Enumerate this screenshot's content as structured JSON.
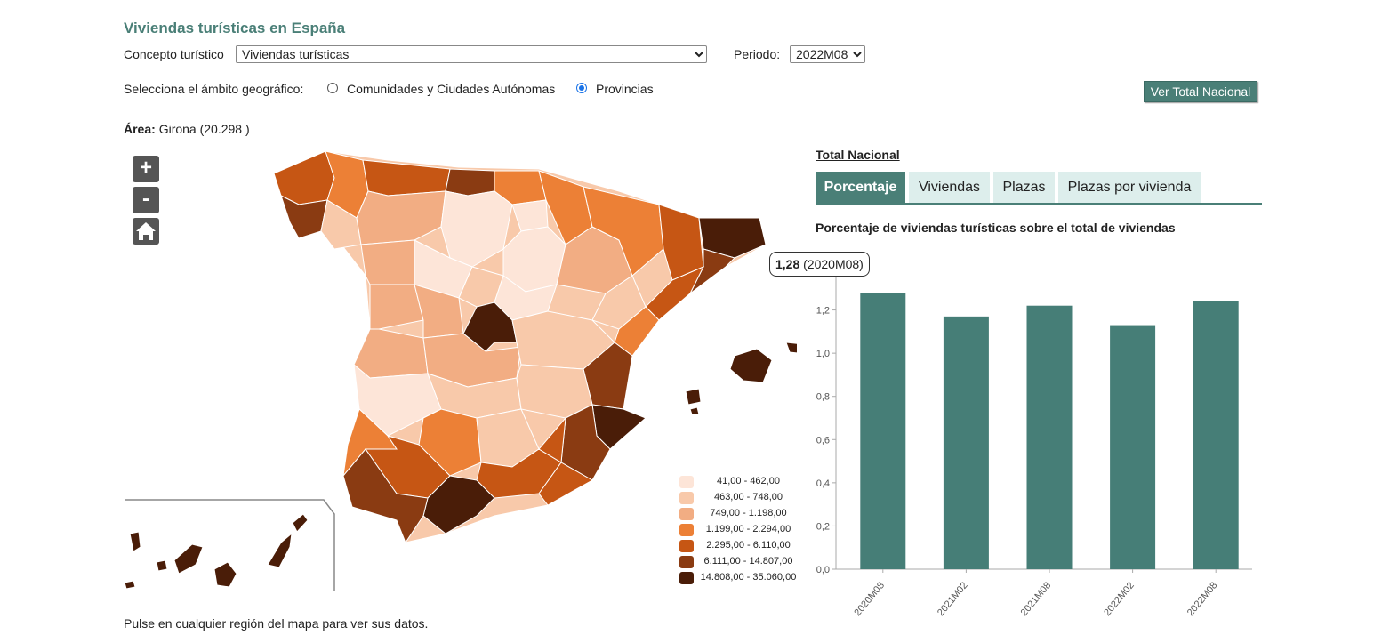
{
  "header": {
    "title": "Viviendas turísticas en España"
  },
  "filters": {
    "concepto_label": "Concepto turístico",
    "concepto_value": "Viviendas turísticas",
    "periodo_label": "Periodo:",
    "periodo_value": "2022M08",
    "ambito_label": "Selecciona el ámbito geográfico:",
    "radio_ccaa": "Comunidades y Ciudades Autónomas",
    "radio_prov": "Provincias",
    "selected_ambito": "Provincias"
  },
  "buttons": {
    "ver_total": "Ver Total Nacional"
  },
  "area": {
    "label": "Área:",
    "value": "Girona (20.298 )"
  },
  "map_controls": {
    "zoom_in": "+",
    "zoom_out": "-",
    "home_icon": "home-icon"
  },
  "legend": [
    {
      "from": "41,00",
      "to": "462,00",
      "color": "#fde5d8"
    },
    {
      "from": "463,00",
      "to": "748,00",
      "color": "#f8c9aa"
    },
    {
      "from": "749,00",
      "to": "1.198,00",
      "color": "#f2ad83"
    },
    {
      "from": "1.199,00",
      "to": "2.294,00",
      "color": "#ec8036"
    },
    {
      "from": "2.295,00",
      "to": "6.110,00",
      "color": "#c65614"
    },
    {
      "from": "6.111,00",
      "to": "14.807,00",
      "color": "#8a3b12"
    },
    {
      "from": "14.808,00",
      "to": "35.060,00",
      "color": "#4a1d08"
    }
  ],
  "hint": "Pulse en cualquier región del mapa para ver sus datos.",
  "panel": {
    "total_link": "Total Nacional",
    "tabs": [
      "Porcentaje",
      "Viviendas",
      "Plazas",
      "Plazas por vivienda"
    ],
    "active_tab": 0,
    "chart_title": "Porcentaje de viviendas turísticas sobre el total de viviendas"
  },
  "tooltip": {
    "value": "1,28",
    "period": "(2020M08)"
  },
  "colors": {
    "accent": "#4a7f77",
    "bar": "#467e77"
  },
  "chart_data": {
    "type": "bar",
    "title": "Porcentaje de viviendas turísticas sobre el total de viviendas",
    "categories": [
      "2020M08",
      "2021M02",
      "2021M08",
      "2022M02",
      "2022M08"
    ],
    "values": [
      1.28,
      1.17,
      1.22,
      1.13,
      1.24
    ],
    "ylim": [
      0,
      1.4
    ],
    "yticks": [
      0,
      0.2,
      0.4,
      0.6,
      0.8,
      1.0,
      1.2
    ],
    "ytick_labels": [
      "0,0",
      "0,2",
      "0,4",
      "0,6",
      "0,8",
      "1,0",
      "1,2"
    ],
    "grid": false,
    "xlabel": "",
    "ylabel": ""
  }
}
